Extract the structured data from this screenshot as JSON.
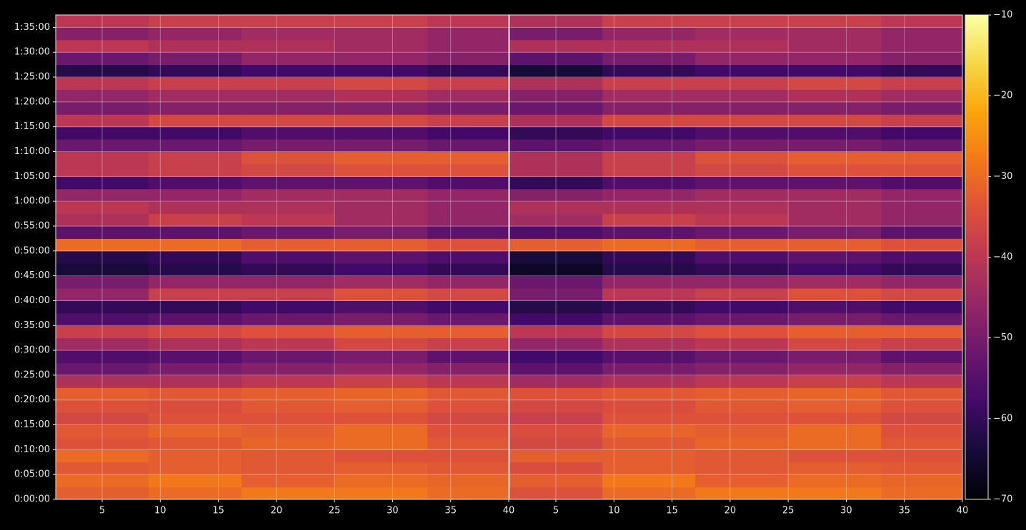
{
  "chart_data": [
    {
      "type": "heatmap",
      "colormap": "inferno",
      "clim": [
        -70,
        -10
      ],
      "grid": true,
      "xlim": [
        1,
        40
      ],
      "xticks": [
        5,
        10,
        15,
        20,
        25,
        30,
        35,
        40
      ],
      "ylim": [
        0,
        5850
      ],
      "yticks": [
        {
          "value": 0,
          "label": "0:00:00"
        },
        {
          "value": 300,
          "label": "0:05:00"
        },
        {
          "value": 600,
          "label": "0:10:00"
        },
        {
          "value": 900,
          "label": "0:15:00"
        },
        {
          "value": 1200,
          "label": "0:20:00"
        },
        {
          "value": 1500,
          "label": "0:25:00"
        },
        {
          "value": 1800,
          "label": "0:30:00"
        },
        {
          "value": 2100,
          "label": "0:35:00"
        },
        {
          "value": 2400,
          "label": "0:40:00"
        },
        {
          "value": 2700,
          "label": "0:45:00"
        },
        {
          "value": 3000,
          "label": "0:50:00"
        },
        {
          "value": 3300,
          "label": "0:55:00"
        },
        {
          "value": 3600,
          "label": "1:00:00"
        },
        {
          "value": 3900,
          "label": "1:05:00"
        },
        {
          "value": 4200,
          "label": "1:10:00"
        },
        {
          "value": 4500,
          "label": "1:15:00"
        },
        {
          "value": 4800,
          "label": "1:20:00"
        },
        {
          "value": 5100,
          "label": "1:25:00"
        },
        {
          "value": 5400,
          "label": "1:30:00"
        },
        {
          "value": 5700,
          "label": "1:35:00"
        }
      ],
      "xbins": [
        1,
        9,
        17,
        25,
        33,
        40
      ],
      "ybins": [
        0,
        150,
        300,
        450,
        600,
        750,
        900,
        1050,
        1200,
        1350,
        1500,
        1650,
        1800,
        1950,
        2100,
        2250,
        2400,
        2550,
        2700,
        2850,
        3000,
        3150,
        3300,
        3450,
        3600,
        3750,
        3900,
        4050,
        4200,
        4350,
        4500,
        4650,
        4800,
        4950,
        5100,
        5250,
        5400,
        5550,
        5700,
        5850
      ],
      "values": [
        [
          -32,
          -30,
          -28,
          -28,
          -30
        ],
        [
          -30,
          -28,
          -32,
          -30,
          -31
        ],
        [
          -33,
          -32,
          -33,
          -32,
          -33
        ],
        [
          -30,
          -32,
          -33,
          -34,
          -34
        ],
        [
          -34,
          -33,
          -31,
          -30,
          -33
        ],
        [
          -33,
          -31,
          -32,
          -30,
          -34
        ],
        [
          -36,
          -34,
          -34,
          -34,
          -36
        ],
        [
          -34,
          -35,
          -33,
          -32,
          -34
        ],
        [
          -32,
          -33,
          -32,
          -31,
          -33
        ],
        [
          -42,
          -42,
          -40,
          -38,
          -40
        ],
        [
          -52,
          -50,
          -48,
          -46,
          -48
        ],
        [
          -56,
          -55,
          -52,
          -50,
          -54
        ],
        [
          -44,
          -42,
          -40,
          -36,
          -38
        ],
        [
          -38,
          -36,
          -34,
          -32,
          -32
        ],
        [
          -56,
          -54,
          -52,
          -50,
          -52
        ],
        [
          -60,
          -60,
          -58,
          -56,
          -58
        ],
        [
          -46,
          -38,
          -38,
          -34,
          -36
        ],
        [
          -50,
          -46,
          -46,
          -44,
          -46
        ],
        [
          -64,
          -62,
          -60,
          -58,
          -60
        ],
        [
          -62,
          -60,
          -56,
          -54,
          -56
        ],
        [
          -30,
          -30,
          -32,
          -32,
          -34
        ],
        [
          -54,
          -54,
          -52,
          -50,
          -54
        ],
        [
          -42,
          -38,
          -40,
          -44,
          -46
        ],
        [
          -40,
          -42,
          -42,
          -44,
          -46
        ],
        [
          -46,
          -46,
          -44,
          -44,
          -46
        ],
        [
          -58,
          -56,
          -54,
          -54,
          -56
        ],
        [
          -40,
          -38,
          -36,
          -34,
          -34
        ],
        [
          -40,
          -38,
          -34,
          -32,
          -32
        ],
        [
          -52,
          -52,
          -50,
          -50,
          -52
        ],
        [
          -58,
          -58,
          -56,
          -56,
          -58
        ],
        [
          -40,
          -36,
          -36,
          -36,
          -38
        ],
        [
          -50,
          -48,
          -48,
          -48,
          -50
        ],
        [
          -46,
          -44,
          -44,
          -42,
          -44
        ],
        [
          -40,
          -38,
          -38,
          -36,
          -38
        ],
        [
          -62,
          -60,
          -58,
          -58,
          -60
        ],
        [
          -52,
          -50,
          -46,
          -46,
          -48
        ],
        [
          -40,
          -42,
          -42,
          -44,
          -46
        ],
        [
          -48,
          -46,
          -44,
          -44,
          -46
        ],
        [
          -40,
          -38,
          -38,
          -38,
          -40
        ]
      ]
    },
    {
      "type": "heatmap",
      "colormap": "inferno",
      "clim": [
        -70,
        -10
      ],
      "grid": true,
      "xlim": [
        1,
        40
      ],
      "xticks": [
        5,
        10,
        15,
        20,
        25,
        30,
        35,
        40
      ],
      "ylim": [
        0,
        5850
      ],
      "yticks": [
        0,
        300,
        600,
        900,
        1200,
        1500,
        1800,
        2100,
        2400,
        2700,
        3000,
        3300,
        3600,
        3900,
        4200,
        4500,
        4800,
        5100,
        5400,
        5700
      ],
      "colorbar_ticks": [
        {
          "value": -70,
          "label": "−70"
        },
        {
          "value": -60,
          "label": "−60"
        },
        {
          "value": -50,
          "label": "−50"
        },
        {
          "value": -40,
          "label": "−40"
        },
        {
          "value": -30,
          "label": "−30"
        },
        {
          "value": -20,
          "label": "−20"
        },
        {
          "value": -10,
          "label": "−10"
        }
      ],
      "xbins": [
        1,
        9,
        17,
        25,
        33,
        40
      ],
      "ybins": [
        0,
        150,
        300,
        450,
        600,
        750,
        900,
        1050,
        1200,
        1350,
        1500,
        1650,
        1800,
        1950,
        2100,
        2250,
        2400,
        2550,
        2700,
        2850,
        3000,
        3150,
        3300,
        3450,
        3600,
        3750,
        3900,
        4050,
        4200,
        4350,
        4500,
        4650,
        4800,
        4950,
        5100,
        5250,
        5400,
        5550,
        5700,
        5850
      ],
      "values": [
        [
          -34,
          -30,
          -28,
          -28,
          -30
        ],
        [
          -32,
          -28,
          -32,
          -30,
          -31
        ],
        [
          -35,
          -32,
          -33,
          -32,
          -33
        ],
        [
          -32,
          -32,
          -33,
          -34,
          -34
        ],
        [
          -36,
          -33,
          -31,
          -30,
          -33
        ],
        [
          -35,
          -31,
          -32,
          -30,
          -34
        ],
        [
          -38,
          -34,
          -34,
          -34,
          -36
        ],
        [
          -36,
          -35,
          -33,
          -32,
          -34
        ],
        [
          -34,
          -33,
          -32,
          -31,
          -33
        ],
        [
          -44,
          -42,
          -40,
          -38,
          -40
        ],
        [
          -54,
          -50,
          -48,
          -46,
          -48
        ],
        [
          -58,
          -55,
          -52,
          -50,
          -54
        ],
        [
          -46,
          -42,
          -40,
          -36,
          -38
        ],
        [
          -40,
          -36,
          -34,
          -32,
          -32
        ],
        [
          -58,
          -54,
          -52,
          -50,
          -52
        ],
        [
          -62,
          -60,
          -58,
          -56,
          -58
        ],
        [
          -50,
          -40,
          -38,
          -34,
          -36
        ],
        [
          -52,
          -46,
          -46,
          -44,
          -46
        ],
        [
          -66,
          -62,
          -60,
          -58,
          -60
        ],
        [
          -64,
          -60,
          -56,
          -54,
          -56
        ],
        [
          -32,
          -30,
          -32,
          -32,
          -34
        ],
        [
          -56,
          -54,
          -52,
          -50,
          -54
        ],
        [
          -44,
          -38,
          -40,
          -44,
          -46
        ],
        [
          -42,
          -42,
          -42,
          -44,
          -46
        ],
        [
          -48,
          -46,
          -44,
          -44,
          -46
        ],
        [
          -60,
          -56,
          -54,
          -54,
          -56
        ],
        [
          -42,
          -38,
          -36,
          -34,
          -34
        ],
        [
          -42,
          -38,
          -34,
          -32,
          -32
        ],
        [
          -54,
          -52,
          -50,
          -50,
          -52
        ],
        [
          -60,
          -58,
          -56,
          -56,
          -58
        ],
        [
          -42,
          -36,
          -36,
          -36,
          -38
        ],
        [
          -52,
          -48,
          -48,
          -48,
          -50
        ],
        [
          -48,
          -44,
          -44,
          -42,
          -44
        ],
        [
          -42,
          -38,
          -38,
          -36,
          -38
        ],
        [
          -64,
          -60,
          -58,
          -58,
          -60
        ],
        [
          -54,
          -50,
          -46,
          -46,
          -48
        ],
        [
          -42,
          -42,
          -42,
          -44,
          -46
        ],
        [
          -50,
          -46,
          -44,
          -44,
          -46
        ],
        [
          -42,
          -38,
          -38,
          -38,
          -40
        ]
      ]
    }
  ]
}
